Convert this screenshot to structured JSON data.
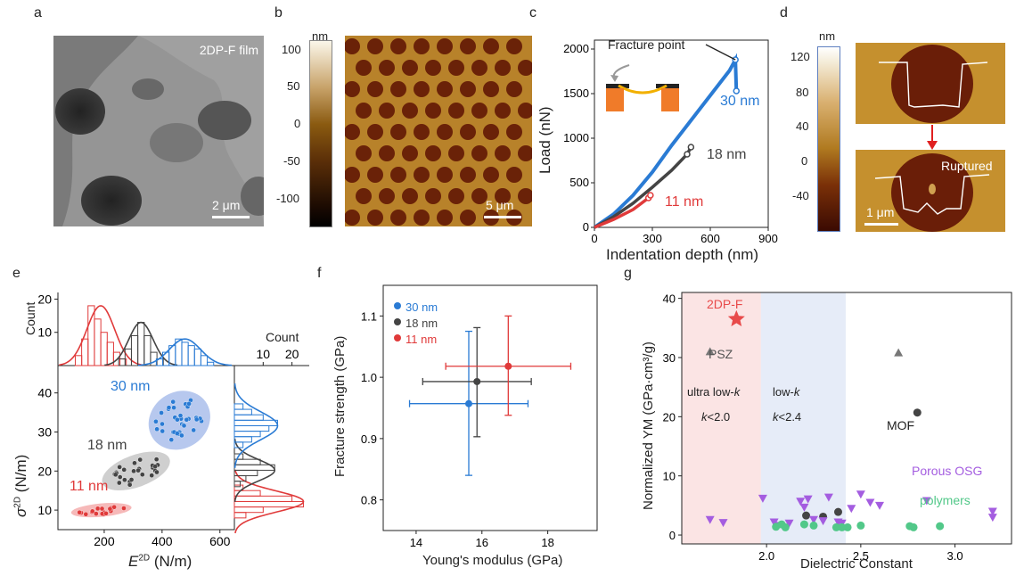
{
  "panel_labels": [
    "a",
    "b",
    "c",
    "d",
    "e",
    "f",
    "g"
  ],
  "colors": {
    "blue": "#2a7bd4",
    "gray": "#444444",
    "red": "#e03a3a",
    "purple": "#a45de0",
    "green": "#52c889",
    "star": "#e84a4a"
  },
  "panel_a": {
    "film_label": "2DP-F film",
    "scale_text": "2 μm"
  },
  "panel_b": {
    "unit": "nm",
    "ticks": [
      "100",
      "50",
      "0",
      "-50",
      "-100"
    ],
    "scale_text": "5 μm"
  },
  "panel_c": {
    "xlabel": "Indentation depth (nm)",
    "ylabel": "Load (nN)",
    "xticks": [
      "0",
      "300",
      "600",
      "900"
    ],
    "yticks": [
      "0",
      "500",
      "1000",
      "1500",
      "2000"
    ],
    "annotation": "Fracture point",
    "curve_labels": [
      "30 nm",
      "18 nm",
      "11 nm"
    ]
  },
  "panel_d": {
    "unit": "nm",
    "ticks": [
      "120",
      "80",
      "40",
      "0",
      "-40"
    ],
    "ruptured": "Ruptured",
    "scale_text": "1 μm"
  },
  "panel_e": {
    "top_ylabel": "Count",
    "top_yticks": [
      "20",
      "10"
    ],
    "right_xlabel": "Count",
    "right_xticks": [
      "10",
      "20"
    ],
    "xlabel": "E",
    "xlabel_sup": "2D",
    "xlabel_unit": " (N/m)",
    "ylabel": "σ",
    "ylabel_sup": "2D",
    "ylabel_unit": " (N/m)",
    "xticks": [
      "200",
      "400",
      "600"
    ],
    "yticks": [
      "10",
      "20",
      "30",
      "40"
    ],
    "group_labels": [
      "30 nm",
      "18 nm",
      "11 nm"
    ]
  },
  "panel_f": {
    "xlabel": "Young's modulus (GPa)",
    "ylabel": "Fracture strength (GPa)",
    "xticks": [
      "14",
      "16",
      "18"
    ],
    "yticks": [
      "0.8",
      "0.9",
      "1.0",
      "1.1"
    ],
    "legend": [
      "30 nm",
      "18 nm",
      "11 nm"
    ]
  },
  "panel_g": {
    "xlabel": "Dielectric Constant",
    "ylabel": "Normalized YM (GPa·cm³/g)",
    "xticks": [
      "2.0",
      "2.5",
      "3.0"
    ],
    "yticks": [
      "0",
      "10",
      "20",
      "30",
      "40"
    ],
    "labels": {
      "twodpf": "2DP-F",
      "psz": "PSZ",
      "ultra": "ultra low-",
      "ultra_k": "k",
      "k20": "<2.0",
      "k_var": "k",
      "low": "low-",
      "low_k": "k",
      "k24": "<2.4",
      "mof": "MOF",
      "osg": "Porous OSG",
      "polymers": "polymers"
    }
  },
  "chart_data": [
    {
      "type": "line",
      "xlabel": "Indentation depth (nm)",
      "ylabel": "Load (nN)",
      "xlim": [
        0,
        900
      ],
      "ylim": [
        0,
        2100
      ],
      "series": [
        {
          "name": "30 nm",
          "x": [
            0,
            100,
            200,
            300,
            400,
            500,
            600,
            700,
            730,
            735
          ],
          "y": [
            0,
            150,
            360,
            620,
            920,
            1200,
            1480,
            1760,
            1880,
            1530
          ]
        },
        {
          "name": "18 nm",
          "x": [
            0,
            100,
            200,
            300,
            400,
            480,
            500
          ],
          "y": [
            0,
            120,
            270,
            450,
            640,
            820,
            900
          ]
        },
        {
          "name": "11 nm",
          "x": [
            0,
            100,
            200,
            280,
            290
          ],
          "y": [
            0,
            90,
            200,
            330,
            360
          ]
        }
      ]
    },
    {
      "type": "scatter",
      "xlabel": "Young's modulus (GPa)",
      "ylabel": "Fracture strength (GPa)",
      "xlim": [
        13,
        19.5
      ],
      "ylim": [
        0.75,
        1.15
      ],
      "series": [
        {
          "name": "30 nm",
          "x": 15.6,
          "y": 0.957,
          "xerr": 1.8,
          "yerr_low": 0.117,
          "yerr_high": 0.118
        },
        {
          "name": "18 nm",
          "x": 15.85,
          "y": 0.993,
          "xerr": 1.65,
          "yerr_low": 0.09,
          "yerr_high": 0.088
        },
        {
          "name": "11 nm",
          "x": 16.8,
          "y": 1.018,
          "xerr": 1.9,
          "yerr_low": 0.08,
          "yerr_high": 0.082
        }
      ]
    },
    {
      "type": "scatter",
      "xlabel": "Dielectric Constant",
      "ylabel": "Normalized YM (GPa·cm³/g)",
      "xlim": [
        1.55,
        3.3
      ],
      "ylim": [
        -1.5,
        41
      ],
      "series": [
        {
          "name": "2DP-F",
          "x": [
            1.84
          ],
          "y": [
            36.5
          ]
        },
        {
          "name": "PSZ",
          "x": [
            1.7,
            2.7
          ],
          "y": [
            31,
            30.8
          ]
        },
        {
          "name": "MOF",
          "x": [
            2.8,
            2.21,
            2.3,
            2.38
          ],
          "y": [
            20.7,
            3.3,
            3.1,
            3.9
          ]
        },
        {
          "name": "Porous OSG",
          "x": [
            1.7,
            1.77,
            1.98,
            2.04,
            2.06,
            2.12,
            2.18,
            2.2,
            2.22,
            2.25,
            2.3,
            2.33,
            2.38,
            2.4,
            2.45,
            2.5,
            2.55,
            2.6,
            2.85,
            3.2,
            3.2
          ],
          "y": [
            2.6,
            2.1,
            6.2,
            2.2,
            1.6,
            2.0,
            5.7,
            4.7,
            6.1,
            2.6,
            2.4,
            6.4,
            2.2,
            2.0,
            4.5,
            6.9,
            5.5,
            5.0,
            5.8,
            4.0,
            3.0
          ]
        },
        {
          "name": "polymers",
          "x": [
            2.05,
            2.08,
            2.1,
            2.2,
            2.25,
            2.37,
            2.4,
            2.43,
            2.5,
            2.76,
            2.78,
            2.92
          ],
          "y": [
            1.4,
            1.8,
            1.3,
            1.8,
            1.6,
            1.3,
            1.3,
            1.3,
            1.6,
            1.5,
            1.3,
            1.5
          ]
        }
      ]
    },
    {
      "type": "scatter",
      "xlabel": "E2D (N/m)",
      "ylabel": "σ2D (N/m)",
      "xlim": [
        40,
        650
      ],
      "ylim": [
        5,
        47
      ],
      "series": [
        {
          "name": "30 nm",
          "center": [
            460,
            33
          ]
        },
        {
          "name": "18 nm",
          "center": [
            310,
            20
          ]
        },
        {
          "name": "11 nm",
          "center": [
            190,
            10
          ]
        }
      ]
    }
  ]
}
